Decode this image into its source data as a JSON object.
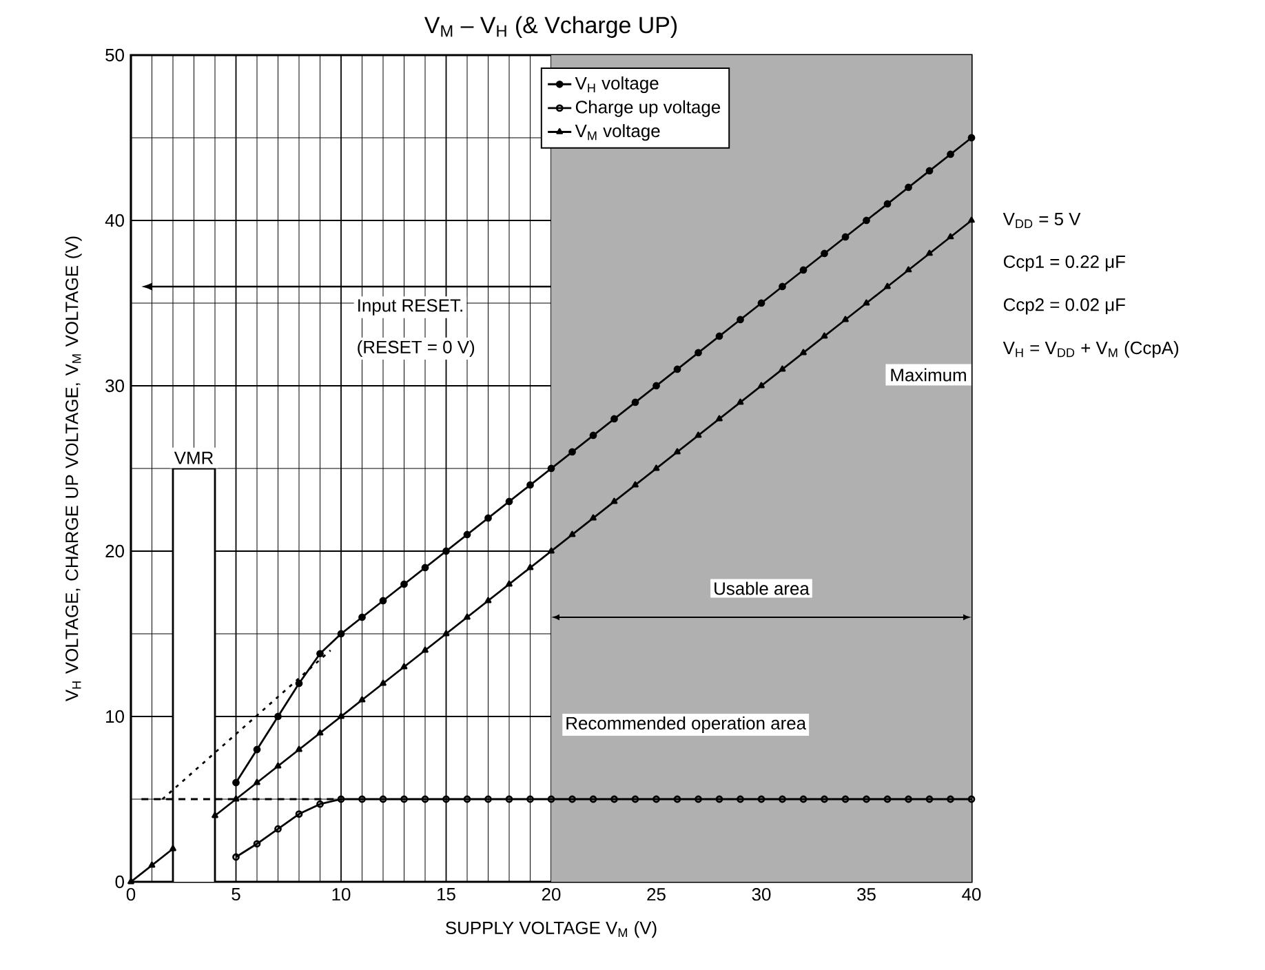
{
  "chart_data": {
    "type": "line",
    "title": "V$_{M}$  –  V$_{H}$ (& Vcharge UP)",
    "xlabel": "SUPPLY VOLTAGE   V$_{M}$   (V)",
    "ylabel": "V$_{H}$ VOLTAGE, CHARGE UP VOLTAGE, V$_{M}$ VOLTAGE   (V)",
    "xlim": [
      0,
      40
    ],
    "ylim": [
      0,
      50
    ],
    "xticks": [
      0,
      5,
      10,
      15,
      20,
      25,
      30,
      35,
      40
    ],
    "yticks": [
      0,
      10,
      20,
      30,
      40,
      50
    ],
    "grid": true,
    "legend": "top",
    "series": [
      {
        "name": "V$_{H}$ voltage",
        "color": "#000000",
        "marker": "circle",
        "x": [
          5,
          6,
          7,
          8,
          9,
          10,
          11,
          12,
          13,
          14,
          15,
          16,
          17,
          18,
          19,
          20,
          21,
          22,
          23,
          24,
          25,
          26,
          27,
          28,
          29,
          30,
          31,
          32,
          33,
          34,
          35,
          36,
          37,
          38,
          39,
          40
        ],
        "values": [
          6,
          8,
          10,
          12,
          13.8,
          15,
          16,
          17,
          18,
          19,
          20,
          21,
          22,
          23,
          24,
          25,
          26,
          27,
          28,
          29,
          30,
          31,
          32,
          33,
          34,
          35,
          36,
          37,
          38,
          39,
          40,
          41,
          42,
          43,
          44,
          45
        ]
      },
      {
        "name": "Charge up voltage",
        "color": "#000000",
        "marker": "open circle",
        "x": [
          5,
          6,
          7,
          8,
          9,
          10,
          11,
          12,
          13,
          14,
          15,
          16,
          17,
          18,
          19,
          20,
          21,
          22,
          23,
          24,
          25,
          26,
          27,
          28,
          29,
          30,
          31,
          32,
          33,
          34,
          35,
          36,
          37,
          38,
          39,
          40
        ],
        "values": [
          1.5,
          2.3,
          3.2,
          4.1,
          4.7,
          5,
          5,
          5,
          5,
          5,
          5,
          5,
          5,
          5,
          5,
          5,
          5,
          5,
          5,
          5,
          5,
          5,
          5,
          5,
          5,
          5,
          5,
          5,
          5,
          5,
          5,
          5,
          5,
          5,
          5,
          5
        ]
      },
      {
        "name": "V$_{M}$ voltage",
        "color": "#000000",
        "marker": "triangle",
        "x": [
          0,
          1,
          2,
          3,
          4,
          5,
          6,
          7,
          8,
          9,
          10,
          11,
          12,
          13,
          14,
          15,
          16,
          17,
          18,
          19,
          20,
          21,
          22,
          23,
          24,
          25,
          26,
          27,
          28,
          29,
          30,
          31,
          32,
          33,
          34,
          35,
          36,
          37,
          38,
          39,
          40
        ],
        "values": [
          0,
          1,
          2,
          null,
          4,
          5,
          6,
          7,
          8,
          9,
          10,
          11,
          12,
          13,
          14,
          15,
          16,
          17,
          18,
          19,
          20,
          21,
          22,
          23,
          24,
          25,
          26,
          27,
          28,
          29,
          30,
          31,
          32,
          33,
          34,
          35,
          36,
          37,
          38,
          39,
          40
        ]
      },
      {
        "color": "#000000",
        "marker": "none",
        "line_style": "dotted",
        "x": [
          1.5,
          9.5
        ],
        "values": [
          5,
          14
        ]
      },
      {
        "color": "#000000",
        "marker": "none",
        "line_style": "dashed",
        "x": [
          0.5,
          10
        ],
        "values": [
          5,
          5
        ]
      }
    ],
    "bands": [
      {
        "axis": "x",
        "from": 20,
        "to": 40,
        "label": "Maximum",
        "color": "#b0b0b0"
      },
      {
        "axis": "x",
        "from": 2,
        "to": 4,
        "label": "VMR"
      }
    ],
    "annotations": [
      "Usable area",
      "Recommended operation area",
      "Input RESET.",
      "(RESET = 0 V)",
      "V$_{DD}$ = 5 V",
      "Ccp1 = 0.22 μF",
      "Ccp2 = 0.02 μF",
      "V$_{H}$ = V$_{DD}$ + V$_{M}$ (CcpA)"
    ]
  }
}
